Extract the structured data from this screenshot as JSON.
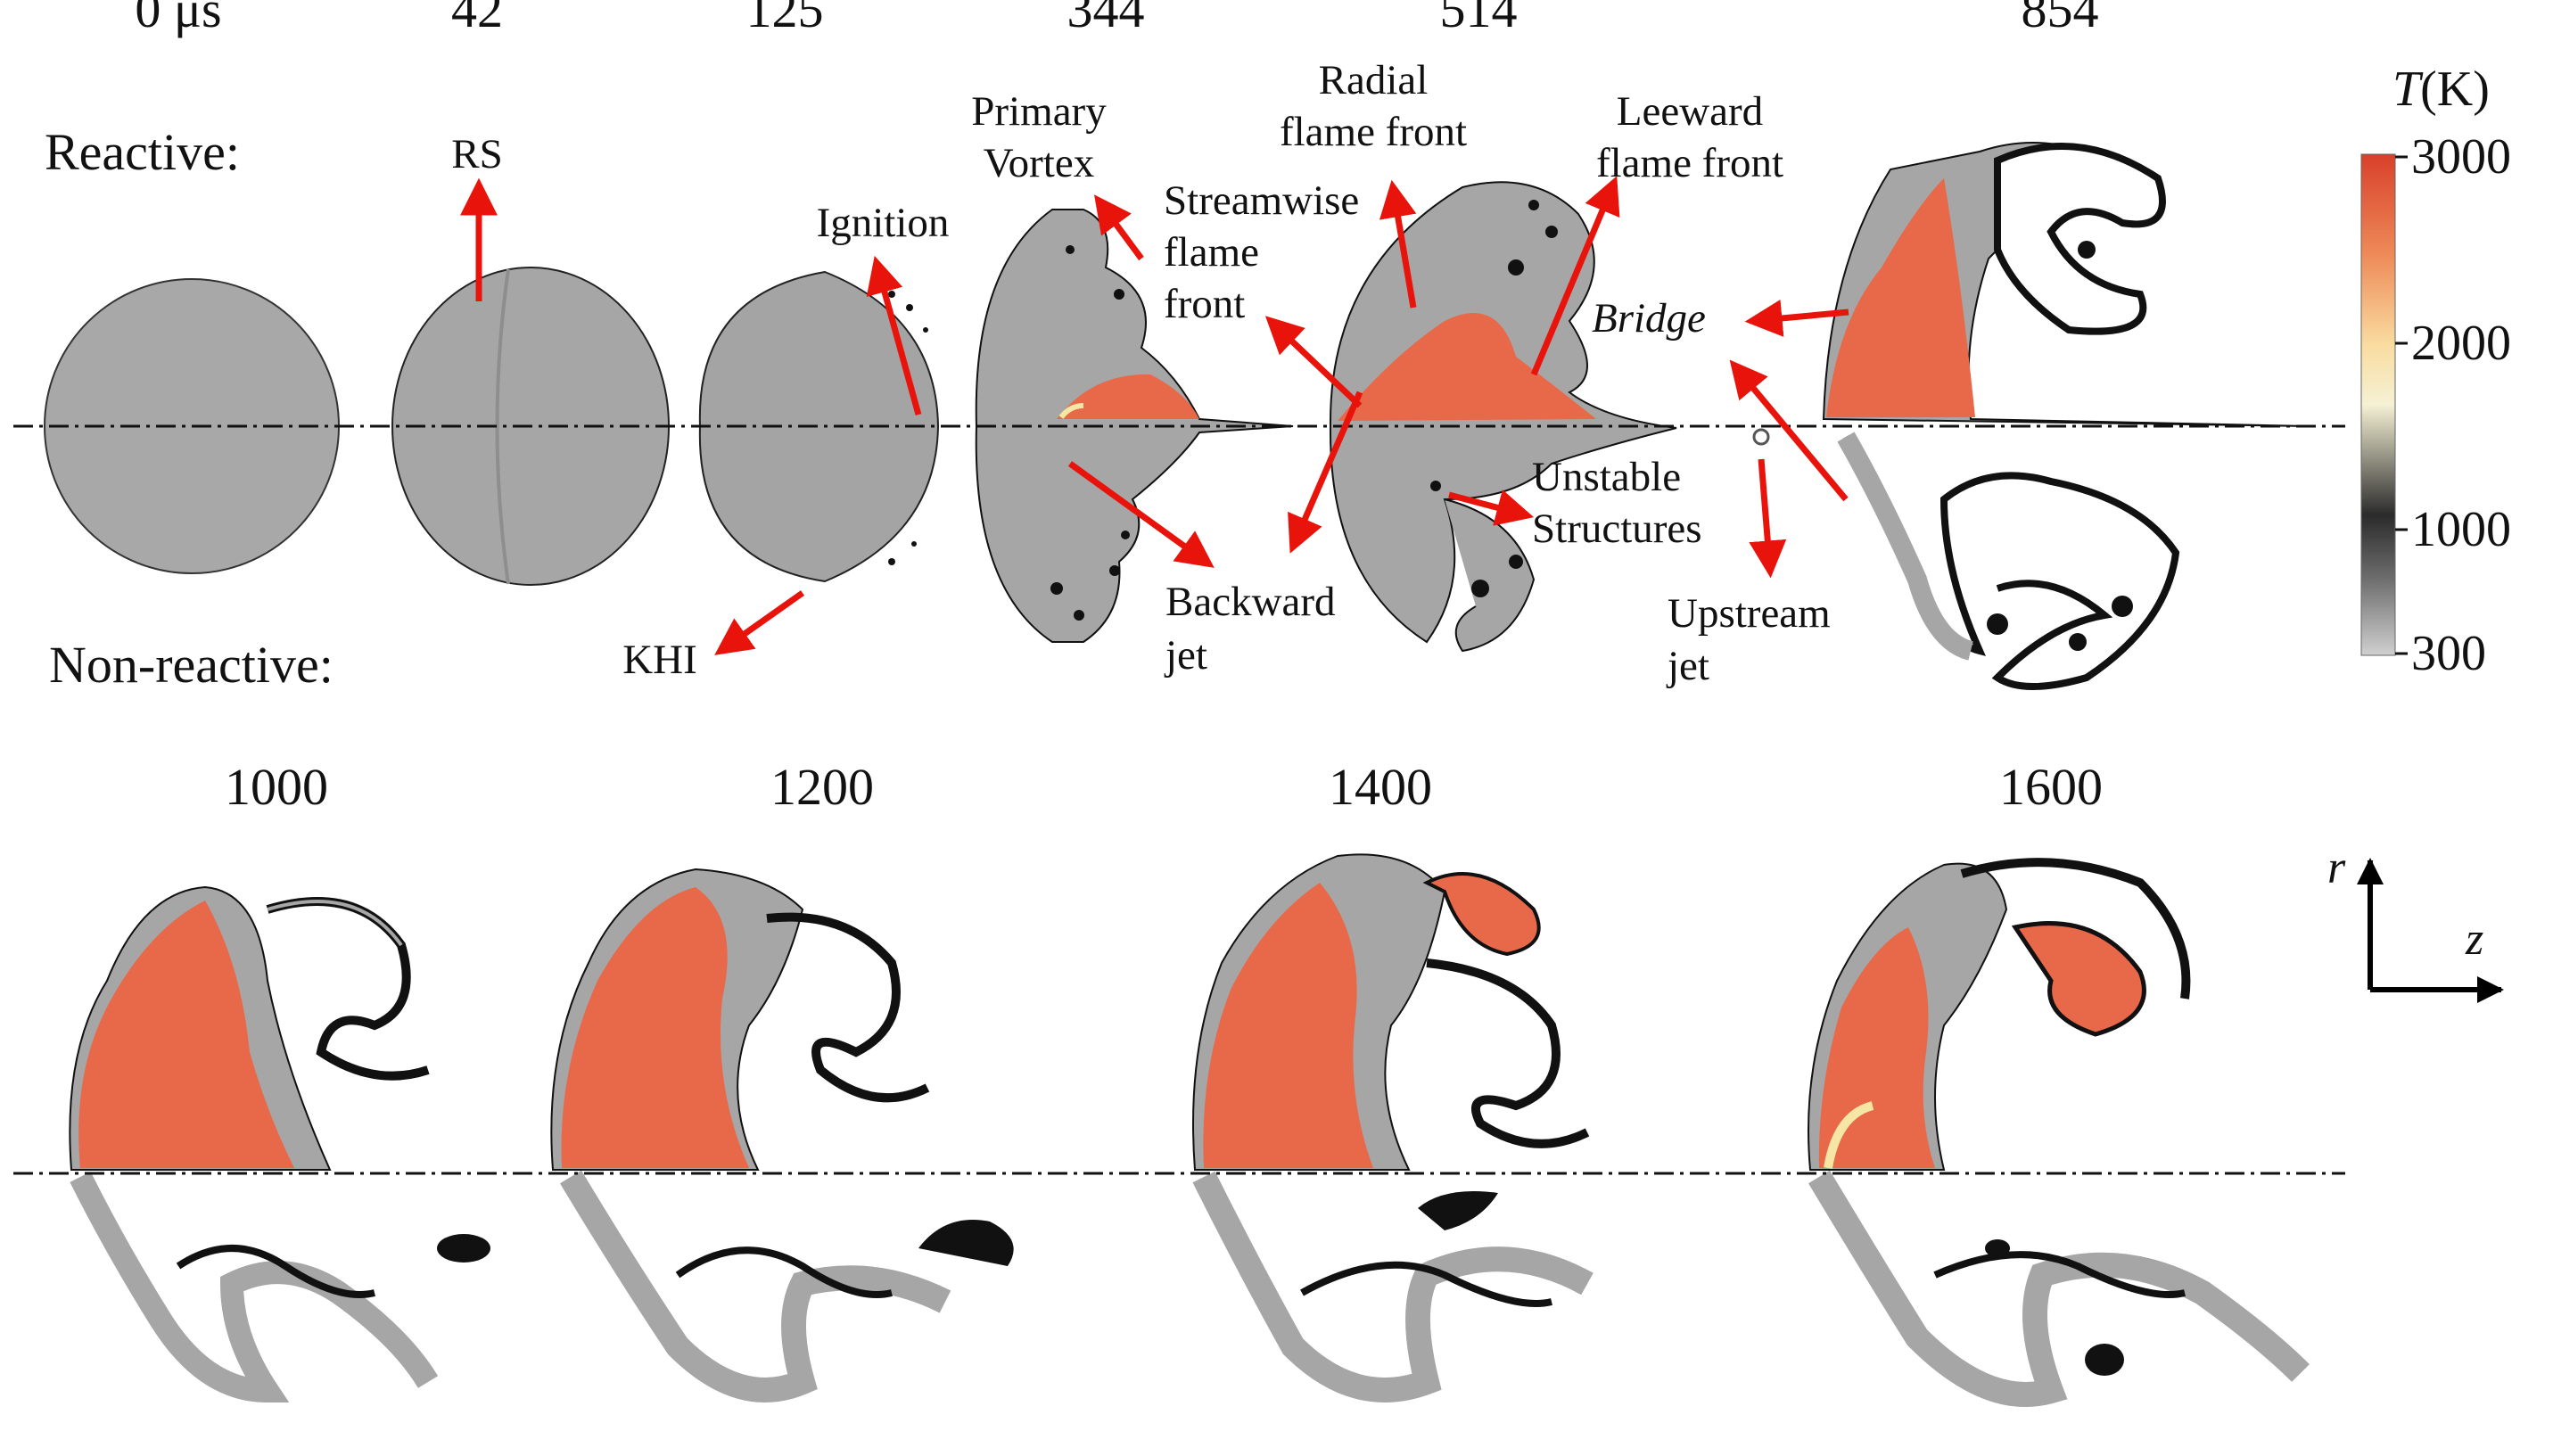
{
  "figure": {
    "row_labels": {
      "reactive": "Reactive:",
      "non_reactive": "Non-reactive:"
    },
    "reactive_color": "#e8140c",
    "time_labels": {
      "t0": "0  μs",
      "t42": "42",
      "t125": "125",
      "t344": "344",
      "t514": "514",
      "t854": "854",
      "t1000": "1000",
      "t1200": "1200",
      "t1400": "1400",
      "t1600": "1600"
    },
    "annotations": {
      "rs": "RS",
      "ignition": "Ignition",
      "khi": "KHI",
      "primary_vortex": [
        "Primary",
        "Vortex"
      ],
      "streamwise": [
        "Streamwise",
        "flame",
        "front"
      ],
      "radial": [
        "Radial",
        "flame front"
      ],
      "leeward": [
        "Leeward",
        "flame front"
      ],
      "bridge": "Bridge",
      "backward_jet": [
        "Backward",
        "jet"
      ],
      "unstable": [
        "Unstable",
        "Structures"
      ],
      "upstream_jet": [
        "Upstream",
        "jet"
      ]
    },
    "arrow_color": "#e8140c",
    "colors": {
      "flame": "#e8694a",
      "gray_gas": "#a8a8a8",
      "dark_gas": "#1a1a1a",
      "warm": "#f6e6a6"
    }
  },
  "colorbar": {
    "title_var": "T",
    "title_unit": "(K)",
    "ticks": [
      "3000",
      "2000",
      "1000",
      "300"
    ],
    "stops": [
      "#d8402a",
      "#ee8a58",
      "#f9dca0",
      "#f5f1d4",
      "#2b2b2b",
      "#6f6f6f",
      "#d0d0d0"
    ]
  },
  "axes": {
    "r": "r",
    "z": "z"
  }
}
